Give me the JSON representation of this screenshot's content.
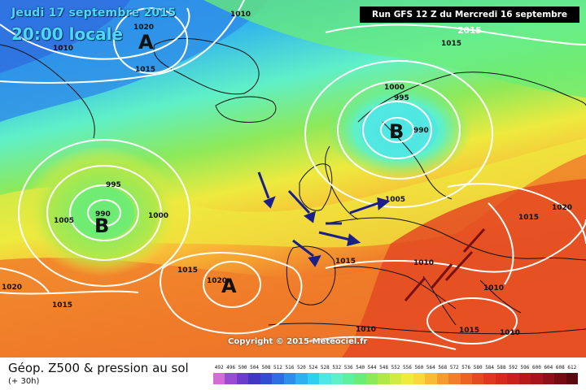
{
  "header": {
    "date": "Jeudi 17 septembre 2015",
    "time": "20:00 locale",
    "run": "Run GFS 12 Z du Mercredi 16 septembre 2015"
  },
  "map": {
    "copyright": "Copyright © 2015 Meteociel.fr",
    "isobars": {
      "1010": "1010",
      "1015": "1015",
      "1020": "1020",
      "1005": "1005",
      "1000": "1000",
      "995": "995",
      "990": "990"
    },
    "centers": {
      "high": "A",
      "low": "B"
    }
  },
  "footer": {
    "title": "Géop. Z500 & pression au sol",
    "subtitle": "(+ 30h)"
  },
  "scale": {
    "ticks": [
      "492",
      "496",
      "500",
      "504",
      "508",
      "512",
      "516",
      "520",
      "524",
      "528",
      "532",
      "536",
      "540",
      "544",
      "548",
      "552",
      "556",
      "560",
      "564",
      "568",
      "572",
      "576",
      "580",
      "584",
      "588",
      "592",
      "596",
      "600",
      "604",
      "608",
      "612"
    ],
    "colors": [
      "#d36cd6",
      "#9b4bd1",
      "#6c3dc9",
      "#4038c2",
      "#2f4fd0",
      "#2f6ee0",
      "#2f8fe8",
      "#2fb0ef",
      "#2fcff2",
      "#4fe6e6",
      "#5ff0c8",
      "#5ff09f",
      "#6aec77",
      "#8ce95a",
      "#b0e84a",
      "#d2ea44",
      "#eeea3e",
      "#f8d83a",
      "#f8bb36",
      "#f59c30",
      "#f07e2a",
      "#ea6226",
      "#e44a22",
      "#de3620",
      "#d6281e",
      "#c8201d",
      "#b81a1c",
      "#a8141b",
      "#8e1018",
      "#740c14",
      "#5a0810"
    ]
  },
  "colors": {
    "background_low": "#2f8fe8",
    "background_high": "#e43a22",
    "isobar": "#ffffff",
    "arrow": "#1a1f8a",
    "arrow_red": "#7a1010"
  }
}
